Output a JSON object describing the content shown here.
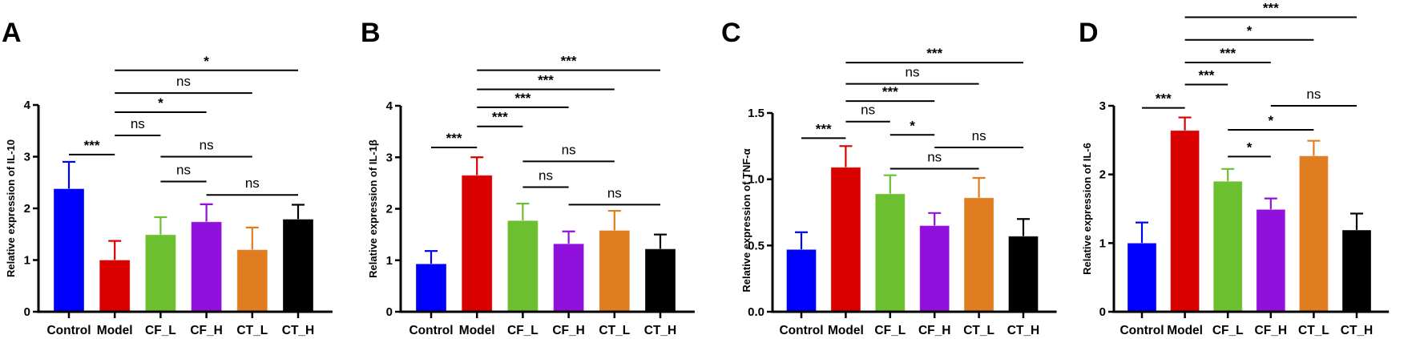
{
  "chart_data": [
    {
      "type": "bar",
      "panel_label": "A",
      "ylabel": "Relative expression of IL-10",
      "categories": [
        "Control",
        "Model",
        "CF_L",
        "CF_H",
        "CT_L",
        "CT_H"
      ],
      "values": [
        2.38,
        1.0,
        1.49,
        1.74,
        1.2,
        1.79
      ],
      "error_upper": [
        2.9,
        1.37,
        1.83,
        2.08,
        1.63,
        2.07
      ],
      "ylim": [
        0,
        4
      ],
      "yticks": [
        "0",
        "1",
        "2",
        "3",
        "4"
      ],
      "significance": [
        {
          "from": 0,
          "to": 1,
          "y": 3.04,
          "label": "***"
        },
        {
          "from": 1,
          "to": 2,
          "y": 3.41,
          "label": "ns"
        },
        {
          "from": 1,
          "to": 3,
          "y": 3.86,
          "label": "*"
        },
        {
          "from": 1,
          "to": 4,
          "y": 4.23,
          "label": "ns"
        },
        {
          "from": 1,
          "to": 5,
          "y": 4.67,
          "label": "*"
        },
        {
          "from": 2,
          "to": 4,
          "y": 3.0,
          "label": "ns"
        },
        {
          "from": 2,
          "to": 3,
          "y": 2.52,
          "label": "ns"
        },
        {
          "from": 3,
          "to": 5,
          "y": 2.26,
          "label": "ns"
        }
      ]
    },
    {
      "type": "bar",
      "panel_label": "B",
      "ylabel": "Relative expression of IL-1β",
      "categories": [
        "Control",
        "Model",
        "CF_L",
        "CF_H",
        "CT_L",
        "CT_H"
      ],
      "values": [
        0.93,
        2.65,
        1.77,
        1.32,
        1.58,
        1.22
      ],
      "error_upper": [
        1.18,
        3.0,
        2.1,
        1.56,
        1.96,
        1.5
      ],
      "ylim": [
        0,
        4
      ],
      "yticks": [
        "0",
        "1",
        "2",
        "3",
        "4"
      ],
      "significance": [
        {
          "from": 0,
          "to": 1,
          "y": 3.19,
          "label": "***"
        },
        {
          "from": 1,
          "to": 2,
          "y": 3.6,
          "label": "***"
        },
        {
          "from": 1,
          "to": 3,
          "y": 3.97,
          "label": "***"
        },
        {
          "from": 1,
          "to": 4,
          "y": 4.32,
          "label": "***"
        },
        {
          "from": 1,
          "to": 5,
          "y": 4.69,
          "label": "***"
        },
        {
          "from": 2,
          "to": 4,
          "y": 2.92,
          "label": "ns"
        },
        {
          "from": 2,
          "to": 3,
          "y": 2.42,
          "label": "ns"
        },
        {
          "from": 3,
          "to": 5,
          "y": 2.08,
          "label": "ns"
        }
      ]
    },
    {
      "type": "bar",
      "panel_label": "C",
      "ylabel": "Relative expression of TNF-α",
      "categories": [
        "Control",
        "Model",
        "CF_L",
        "CF_H",
        "CT_L",
        "CT_H"
      ],
      "values": [
        0.47,
        1.09,
        0.89,
        0.65,
        0.86,
        0.57
      ],
      "error_upper": [
        0.6,
        1.25,
        1.03,
        0.745,
        1.01,
        0.7
      ],
      "ylim": [
        0,
        1.5
      ],
      "yticks": [
        "0.0",
        "0.5",
        "1.0",
        "1.5"
      ],
      "significance": [
        {
          "from": 0,
          "to": 1,
          "y": 1.31,
          "label": "***"
        },
        {
          "from": 1,
          "to": 2,
          "y": 1.435,
          "label": "ns"
        },
        {
          "from": 1,
          "to": 3,
          "y": 1.59,
          "label": "***"
        },
        {
          "from": 1,
          "to": 4,
          "y": 1.72,
          "label": "ns"
        },
        {
          "from": 1,
          "to": 5,
          "y": 1.88,
          "label": "***"
        },
        {
          "from": 2,
          "to": 3,
          "y": 1.335,
          "label": "*"
        },
        {
          "from": 3,
          "to": 5,
          "y": 1.24,
          "label": "ns"
        },
        {
          "from": 2,
          "to": 4,
          "y": 1.08,
          "label": "ns"
        }
      ]
    },
    {
      "type": "bar",
      "panel_label": "D",
      "ylabel": "Relative expression of IL-6",
      "categories": [
        "Control",
        "Model",
        "CF_L",
        "CF_H",
        "CT_L",
        "CT_H"
      ],
      "values": [
        1.0,
        2.64,
        1.9,
        1.49,
        2.27,
        1.19
      ],
      "error_upper": [
        1.3,
        2.83,
        2.08,
        1.65,
        2.49,
        1.43
      ],
      "ylim": [
        0,
        3
      ],
      "yticks": [
        "0",
        "1",
        "2",
        "3"
      ],
      "significance": [
        {
          "from": 0,
          "to": 1,
          "y": 2.97,
          "label": "***"
        },
        {
          "from": 1,
          "to": 2,
          "y": 3.31,
          "label": "***"
        },
        {
          "from": 1,
          "to": 3,
          "y": 3.63,
          "label": "***"
        },
        {
          "from": 1,
          "to": 4,
          "y": 3.96,
          "label": "*"
        },
        {
          "from": 1,
          "to": 5,
          "y": 4.29,
          "label": "***"
        },
        {
          "from": 2,
          "to": 3,
          "y": 2.26,
          "label": "*"
        },
        {
          "from": 2,
          "to": 4,
          "y": 2.65,
          "label": "*"
        },
        {
          "from": 3,
          "to": 5,
          "y": 3.0,
          "label": "ns"
        }
      ]
    }
  ],
  "colors": [
    "#0000ff",
    "#d90000",
    "#6cbf2e",
    "#9010dc",
    "#e07d20",
    "#000000"
  ]
}
